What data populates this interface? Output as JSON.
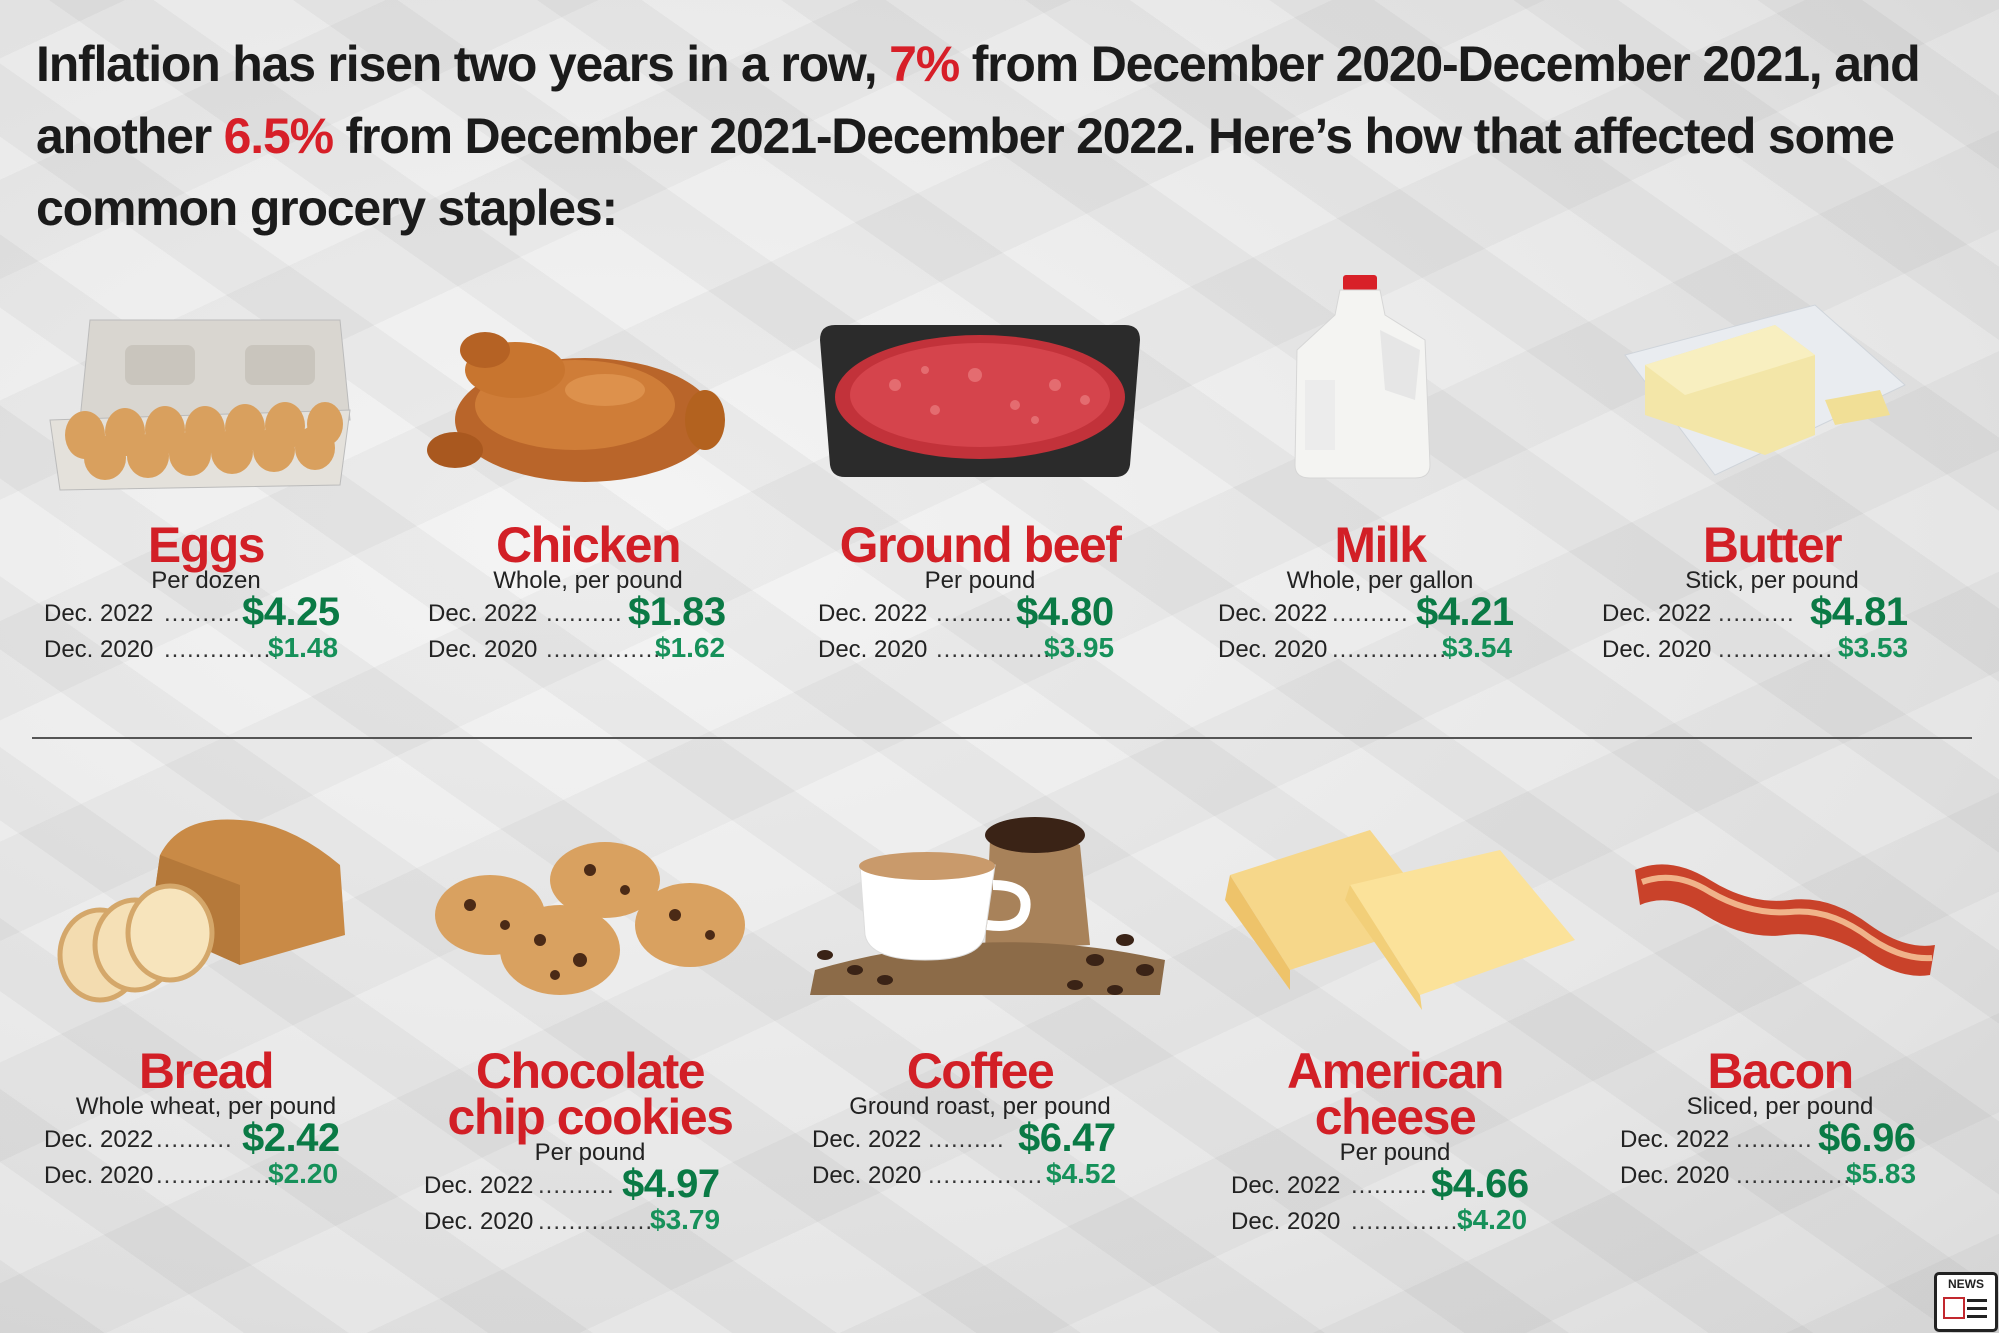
{
  "headline": {
    "part1": "Inflation has risen two years in a row, ",
    "pct1": "7%",
    "part2": " from December 2020-December 2021, and another ",
    "pct2": "6.5%",
    "part3": " from December 2021-December 2022. Here’s how that affected some common grocery staples:"
  },
  "colors": {
    "accent_red": "#d71f28",
    "price_green": "#0a7a45"
  },
  "labels": {
    "dec2022": "Dec. 2022",
    "dec2020": "Dec. 2020"
  },
  "items": [
    {
      "name": "Eggs",
      "unit": "Per dozen",
      "dec_2022": "$4.25",
      "dec_2020": "$1.48"
    },
    {
      "name": "Chicken",
      "unit": "Whole, per pound",
      "dec_2022": "$1.83",
      "dec_2020": "$1.62"
    },
    {
      "name": "Ground beef",
      "unit": "Per pound",
      "dec_2022": "$4.80",
      "dec_2020": "$3.95"
    },
    {
      "name": "Milk",
      "unit": "Whole, per gallon",
      "dec_2022": "$4.21",
      "dec_2020": "$3.54"
    },
    {
      "name": "Butter",
      "unit": "Stick, per pound",
      "dec_2022": "$4.81",
      "dec_2020": "$3.53"
    },
    {
      "name": "Bread",
      "unit": "Whole wheat, per pound",
      "dec_2022": "$2.42",
      "dec_2020": "$2.20"
    },
    {
      "name": "Chocolate chip cookies",
      "unit": "Per pound",
      "dec_2022": "$4.97",
      "dec_2020": "$3.79"
    },
    {
      "name": "Coffee",
      "unit": "Ground roast, per pound",
      "dec_2022": "$6.47",
      "dec_2020": "$4.52"
    },
    {
      "name": "American cheese",
      "unit": "Per pound",
      "dec_2022": "$4.66",
      "dec_2020": "$4.20"
    },
    {
      "name": "Bacon",
      "unit": "Sliced, per pound",
      "dec_2022": "$6.96",
      "dec_2020": "$5.83"
    }
  ],
  "badge": {
    "text": "NEWS",
    "icon": "news-icon"
  }
}
